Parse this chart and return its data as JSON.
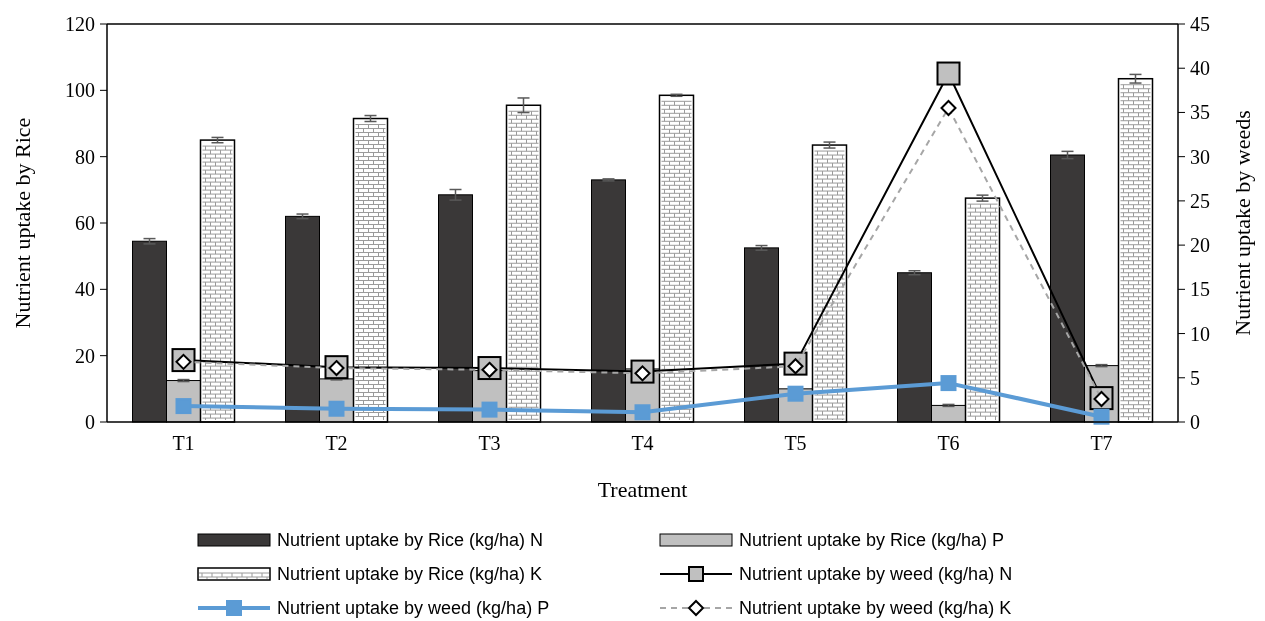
{
  "chart_data": {
    "type": "bar",
    "xlabel": "Treatment",
    "ylabel": "Nutrient uptake by Rice",
    "y2label": "Nutrient uptake by weeds",
    "categories": [
      "T1",
      "T2",
      "T3",
      "T4",
      "T5",
      "T6",
      "T7"
    ],
    "ylim": [
      0,
      120
    ],
    "yticks": [
      0,
      20,
      40,
      60,
      80,
      100,
      120
    ],
    "y2lim": [
      0,
      45
    ],
    "y2ticks": [
      0,
      5,
      10,
      15,
      20,
      25,
      30,
      35,
      40,
      45
    ],
    "grid": false,
    "legend": "bottom",
    "series": [
      {
        "name": "Nutrient uptake by Rice (kg/ha) N",
        "color": "#3a3838",
        "values": [
          54.5,
          62,
          68.5,
          73,
          52.5,
          45,
          80.5
        ],
        "errors": [
          0.8,
          0.7,
          1.6,
          0.3,
          0.7,
          0.6,
          1.1
        ]
      },
      {
        "name": "Nutrient uptake by Rice (kg/ha) P",
        "color": "#c0c0c0",
        "values": [
          12.5,
          13,
          15.5,
          16,
          10,
          5,
          17
        ],
        "errors": [
          0.3,
          0.3,
          0.3,
          0.3,
          0.3,
          0.3,
          0.3
        ]
      },
      {
        "name": "Nutrient uptake by Rice (kg/ha) K",
        "color": "#ffffff",
        "values": [
          85,
          91.5,
          95.5,
          98.5,
          83.5,
          67.5,
          103.5
        ],
        "errors": [
          0.8,
          0.9,
          2.2,
          0.3,
          0.9,
          0.9,
          1.3
        ]
      },
      {
        "name": "Nutrient uptake by weed (kg/ha) N",
        "type": "line",
        "axis": "y2",
        "color": "#000000",
        "marker": "square",
        "line_style": "solid",
        "values": [
          7,
          6.2,
          6.1,
          5.7,
          6.6,
          39.4,
          2.7
        ]
      },
      {
        "name": "Nutrient uptake by weed (kg/ha) P",
        "type": "line",
        "axis": "y2",
        "color": "#5b9bd5",
        "marker": "square",
        "line_style": "solid",
        "values": [
          1.8,
          1.5,
          1.4,
          1.1,
          3.2,
          4.4,
          0.6
        ]
      },
      {
        "name": "Nutrient uptake by weed (kg/ha) K",
        "type": "line",
        "axis": "y2",
        "color": "#a6a6a6",
        "marker": "diamond",
        "line_style": "dashed",
        "values": [
          6.8,
          6.1,
          5.9,
          5.5,
          6.3,
          35.5,
          2.6
        ]
      }
    ]
  }
}
